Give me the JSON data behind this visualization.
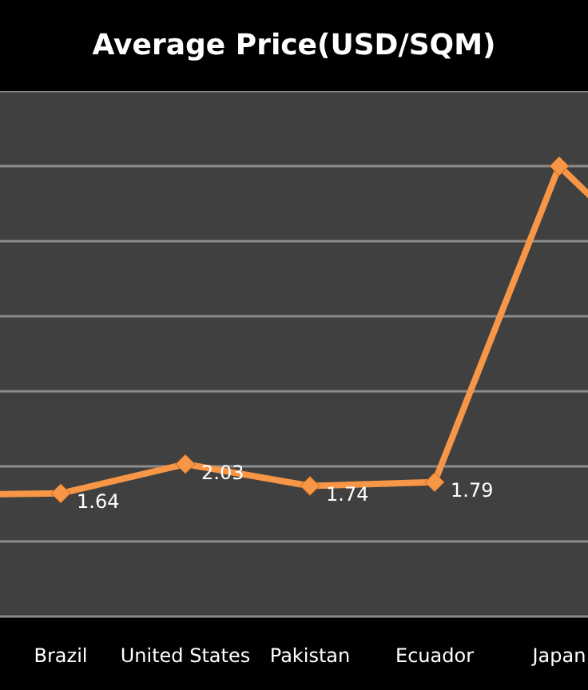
{
  "chart_data": {
    "type": "line",
    "title": "Average Price(USD/SQM)",
    "categories": [
      null,
      "Brazil",
      "United States",
      "Pakistan",
      "Ecuador",
      "Japan",
      null
    ],
    "series": [
      {
        "color": "#f79646",
        "values": [
          1.62,
          1.64,
          2.03,
          1.74,
          1.79,
          6.0,
          4.4
        ],
        "value_labels": [
          null,
          "1.64",
          "2.03",
          "1.74",
          "1.79",
          null,
          null
        ]
      }
    ],
    "ylim": [
      0,
      7
    ],
    "yticks": [
      {
        "value": 0,
        "label": null
      },
      {
        "value": 1,
        "label": null
      },
      {
        "value": 2,
        "label": null
      },
      {
        "value": 3,
        "label": null
      },
      {
        "value": 4,
        "label": null
      },
      {
        "value": 5,
        "label": null
      },
      {
        "value": 6,
        "label": null
      },
      {
        "value": 7,
        "label": null
      }
    ],
    "tick_labels": "x",
    "grid": "y",
    "marker": "diamond"
  }
}
